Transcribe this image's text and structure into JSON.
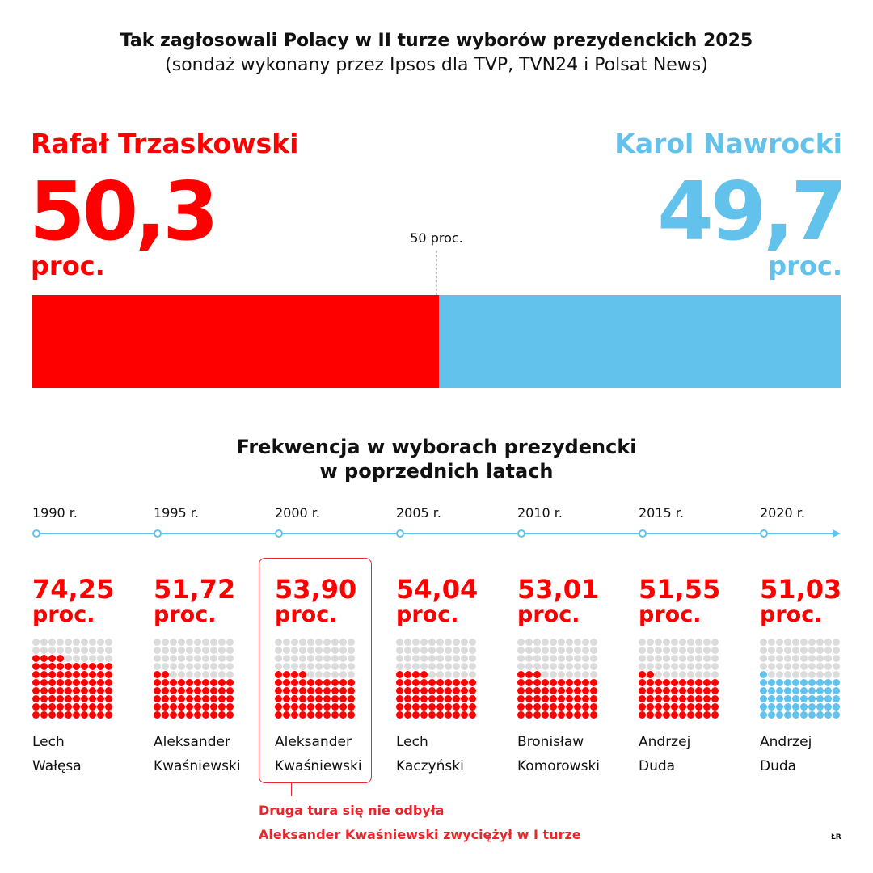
{
  "title": "Tak zagłosowali Polacy w II turze wyborów prezydenckich 2025",
  "subtitle": "(sondaż wykonany przez Ipsos dla TVP, TVN24 i Polsat News)",
  "colors": {
    "red": "#ff0000",
    "blue": "#63c2eb",
    "gray": "#dcdcdc"
  },
  "result": {
    "candidate_a": {
      "name": "Rafał Trzaskowski",
      "value": "50,3",
      "unit": "proc.",
      "percent": 50.3,
      "color": "#ff0000"
    },
    "candidate_b": {
      "name": "Karol Nawrocki",
      "value": "49,7",
      "unit": "proc.",
      "percent": 49.7,
      "color": "#63c2eb"
    },
    "midline_label": "50 proc."
  },
  "chart_data": {
    "type": "waffle",
    "title": "Frekwencja w wyborach prezydencki w poprzednich latach",
    "title_lines": [
      "Frekwencja w wyborach prezydencki",
      "w poprzednich latach"
    ],
    "unit": "proc.",
    "items": [
      {
        "year": "1990 r.",
        "value": 74.25,
        "label": "74,25",
        "winner": [
          "Lech",
          "Wałęsa"
        ],
        "color": "#ff0000"
      },
      {
        "year": "1995 r.",
        "value": 51.72,
        "label": "51,72",
        "winner": [
          "Aleksander",
          "Kwaśniewski"
        ],
        "color": "#ff0000"
      },
      {
        "year": "2000 r.",
        "value": 53.9,
        "label": "53,90",
        "winner": [
          "Aleksander",
          "Kwaśniewski"
        ],
        "color": "#ff0000",
        "highlighted": true
      },
      {
        "year": "2005 r.",
        "value": 54.04,
        "label": "54,04",
        "winner": [
          "Lech",
          "Kaczyński"
        ],
        "color": "#ff0000"
      },
      {
        "year": "2010 r.",
        "value": 53.01,
        "label": "53,01",
        "winner": [
          "Bronisław",
          "Komorowski"
        ],
        "color": "#ff0000"
      },
      {
        "year": "2015 r.",
        "value": 51.55,
        "label": "51,55",
        "winner": [
          "Andrzej",
          "Duda"
        ],
        "color": "#ff0000"
      },
      {
        "year": "2020 r.",
        "value": 51.03,
        "label": "51,03",
        "winner": [
          "Andrzej",
          "Duda"
        ],
        "color": "#63c2eb"
      }
    ],
    "note": [
      "Druga tura się nie odbyła",
      "Aleksander Kwaśniewski zwyciężył w I turze"
    ]
  },
  "signature": "ŁR"
}
